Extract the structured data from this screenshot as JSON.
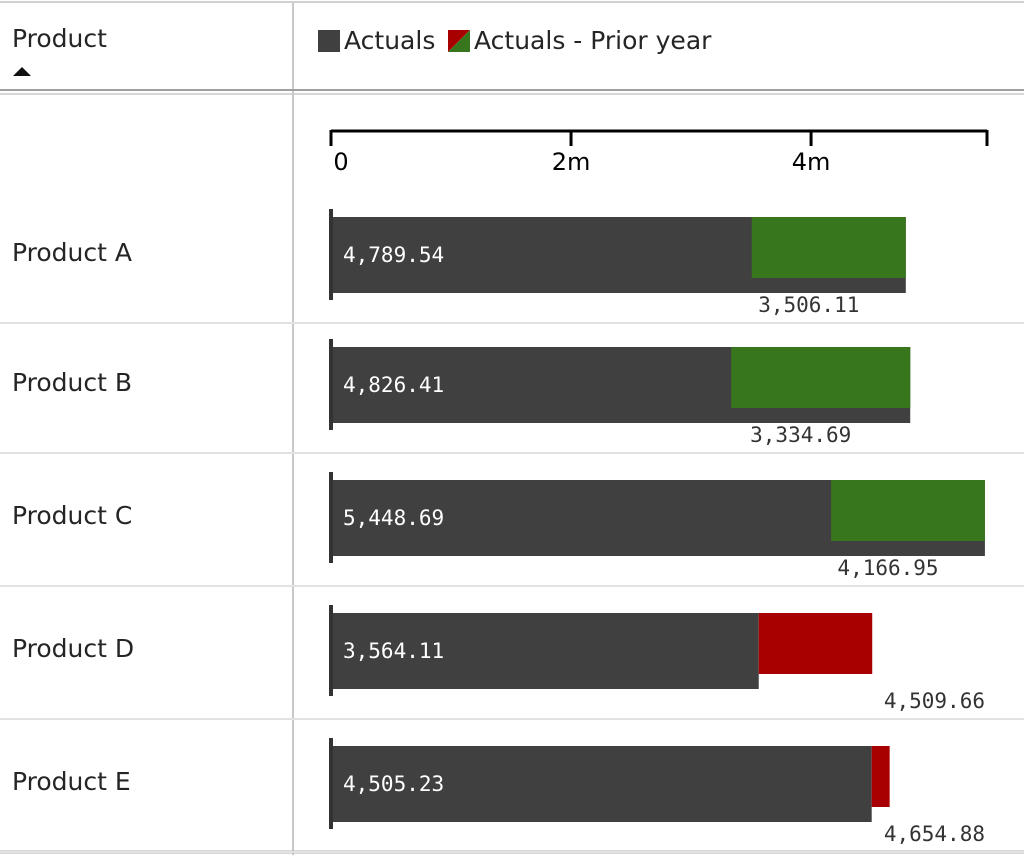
{
  "chart_data": {
    "type": "bar",
    "category_label": "Product",
    "categories": [
      "Product A",
      "Product B",
      "Product C",
      "Product D",
      "Product E"
    ],
    "series": [
      {
        "name": "Actuals",
        "color": "#404040",
        "values": [
          4789.54,
          4826.41,
          5448.69,
          3564.11,
          4505.23
        ],
        "value_labels": [
          "4,789.54",
          "4,826.41",
          "5,448.69",
          "3,564.11",
          "4,505.23"
        ]
      },
      {
        "name": "Actuals - Prior year",
        "colors": {
          "better": "#38761d",
          "worse": "#a80000"
        },
        "values": [
          3506.11,
          3334.69,
          4166.95,
          4509.66,
          4654.88
        ],
        "value_labels": [
          "3,506.11",
          "3,334.69",
          "4,166.95",
          "4,509.66",
          "4,654.88"
        ]
      }
    ],
    "xlim": [
      0,
      5466
    ],
    "xticks": [
      {
        "value": 0,
        "label": "0"
      },
      {
        "value": 2000,
        "label": "2m"
      },
      {
        "value": 4000,
        "label": "4m"
      }
    ]
  }
}
